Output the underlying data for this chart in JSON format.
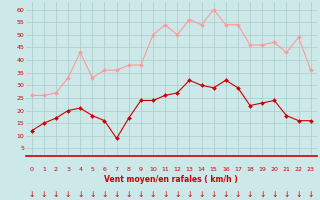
{
  "x": [
    0,
    1,
    2,
    3,
    4,
    5,
    6,
    7,
    8,
    9,
    10,
    11,
    12,
    13,
    14,
    15,
    16,
    17,
    18,
    19,
    20,
    21,
    22,
    23
  ],
  "avg_wind": [
    12,
    15,
    17,
    20,
    21,
    18,
    16,
    9,
    17,
    24,
    24,
    26,
    27,
    32,
    30,
    29,
    32,
    29,
    22,
    23,
    24,
    18,
    16,
    16
  ],
  "gust_wind": [
    26,
    26,
    27,
    33,
    43,
    33,
    36,
    36,
    38,
    38,
    50,
    54,
    50,
    56,
    54,
    60,
    54,
    54,
    46,
    46,
    47,
    43,
    49,
    36
  ],
  "avg_color": "#cc0000",
  "gust_color": "#ff9999",
  "bg_color": "#cce8e8",
  "grid_color": "#aacccc",
  "xlabel": "Vent moyen/en rafales ( km/h )",
  "ylabel_ticks": [
    5,
    10,
    15,
    20,
    25,
    30,
    35,
    40,
    45,
    50,
    55,
    60
  ],
  "ylim": [
    2,
    63
  ],
  "xlim": [
    -0.5,
    23.5
  ],
  "axis_label_color": "#cc0000",
  "tick_color": "#cc0000"
}
